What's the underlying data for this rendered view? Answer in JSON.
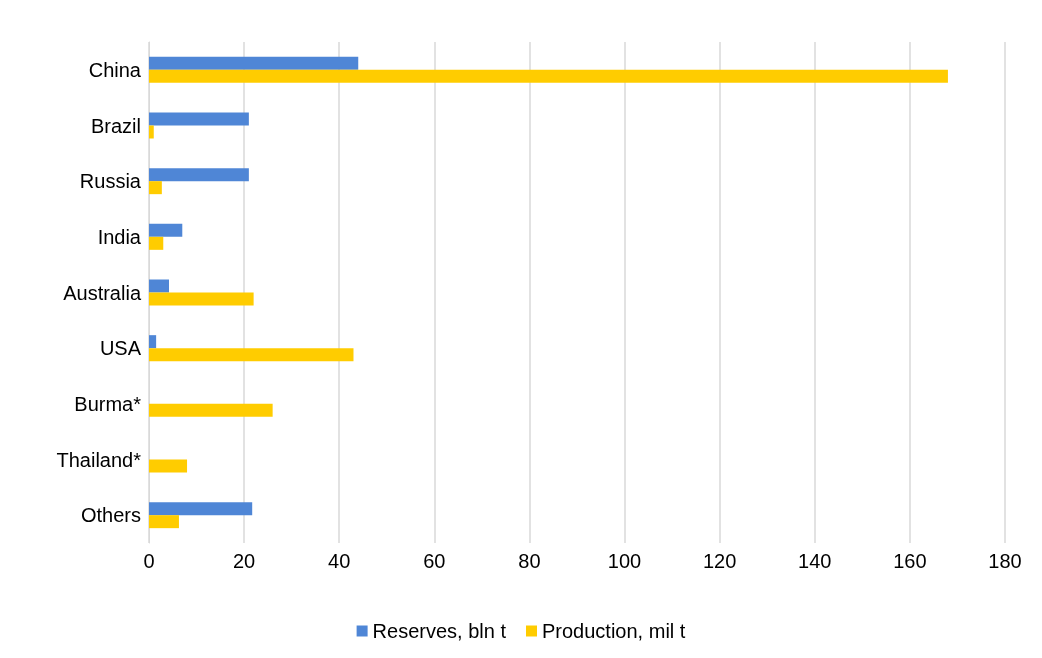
{
  "chart_data": {
    "type": "bar",
    "orientation": "horizontal",
    "categories": [
      "China",
      "Brazil",
      "Russia",
      "India",
      "Australia",
      "USA",
      "Burma*",
      "Thailand*",
      "Others"
    ],
    "series": [
      {
        "name": "Reserves, bln t",
        "color": "#4f86d6",
        "values": [
          44,
          21,
          21,
          7,
          4.2,
          1.5,
          null,
          null,
          21.7
        ]
      },
      {
        "name": "Production, mil t",
        "color": "#ffcc00",
        "values": [
          168,
          1,
          2.7,
          3,
          22,
          43,
          26,
          8,
          6.3
        ]
      }
    ],
    "xlim": [
      0,
      180
    ],
    "xticks": [
      0,
      20,
      40,
      60,
      80,
      100,
      120,
      140,
      160,
      180
    ],
    "grid": "x",
    "legend": "bottom"
  }
}
